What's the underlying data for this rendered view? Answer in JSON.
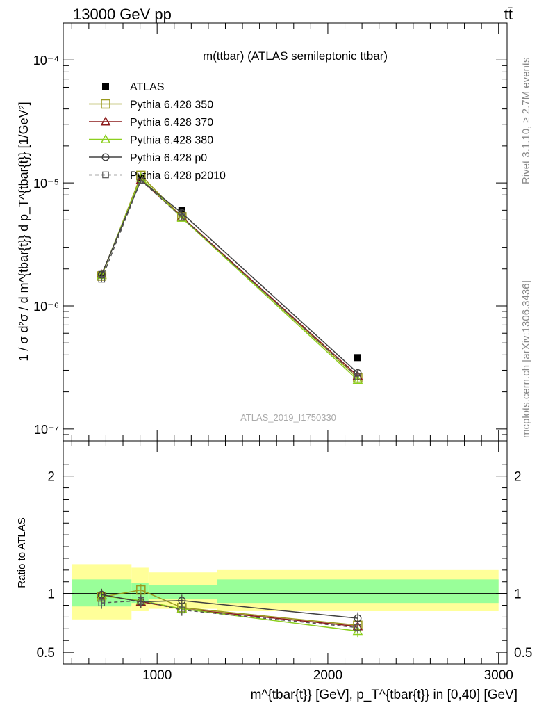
{
  "header": {
    "left": "13000 GeV pp",
    "right": "tt̄"
  },
  "side_labels": {
    "rivet": "Rivet 3.1.10, ≥ 2.7M events",
    "mcplots": "mcplots.cern.ch [arXiv:1306.3436]"
  },
  "chart_data": [
    {
      "type": "line",
      "title": "m(ttbar) (ATLAS semileptonic ttbar)",
      "watermark": "ATLAS_2019_I1750330",
      "ylabel": "1 / σ d²σ / d m^{tbar{t}} d p_T^{tbar{t}} [1/GeV²]",
      "yscale": "log",
      "ylim": [
        8e-08,
        0.0002
      ],
      "xlim": [
        450,
        3050
      ],
      "y_ticks": [
        {
          "value": 1e-07,
          "label": "10⁻⁷"
        },
        {
          "value": 1e-06,
          "label": "10⁻⁶"
        },
        {
          "value": 1e-05,
          "label": "10⁻⁵"
        },
        {
          "value": 0.0001,
          "label": "10⁻⁴"
        }
      ],
      "legend_position": "top-left",
      "x": [
        675,
        905,
        1145,
        2175
      ],
      "series": [
        {
          "name": "ATLAS",
          "color": "#000000",
          "marker": "filled-square",
          "line": "none",
          "values": [
            1.8e-06,
            1.1e-05,
            6e-06,
            3.8e-07
          ]
        },
        {
          "name": "Pythia 6.428 350",
          "color": "#9a9a1e",
          "marker": "open-square",
          "line": "solid",
          "values": [
            1.75e-06,
            1.15e-05,
            5.3e-06,
            2.6e-07
          ]
        },
        {
          "name": "Pythia 6.428 370",
          "color": "#8b1a1a",
          "marker": "open-triangle",
          "line": "solid",
          "values": [
            1.8e-06,
            1.06e-05,
            5.3e-06,
            2.7e-07
          ]
        },
        {
          "name": "Pythia 6.428 380",
          "color": "#8ccf1f",
          "marker": "open-triangle",
          "line": "solid",
          "values": [
            1.78e-06,
            1.1e-05,
            5.2e-06,
            2.5e-07
          ]
        },
        {
          "name": "Pythia 6.428 p0",
          "color": "#404040",
          "marker": "open-circle",
          "line": "solid",
          "values": [
            1.8e-06,
            1.05e-05,
            5.7e-06,
            2.85e-07
          ]
        },
        {
          "name": "Pythia 6.428 p2010",
          "color": "#555555",
          "marker": "open-square-small",
          "line": "dashed",
          "values": [
            1.65e-06,
            1.05e-05,
            5.25e-06,
            2.65e-07
          ]
        }
      ]
    },
    {
      "type": "line",
      "xlabel": "m^{tbar{t}} [GeV], p_T^{tbar{t}} in [0,40] [GeV]",
      "ylabel": "Ratio to ATLAS",
      "ylim": [
        0.4,
        2.3
      ],
      "xlim": [
        450,
        3050
      ],
      "x_ticks": [
        {
          "value": 1000,
          "label": "1000"
        },
        {
          "value": 2000,
          "label": "2000"
        },
        {
          "value": 3000,
          "label": "3000"
        }
      ],
      "y_ticks": [
        {
          "value": 0.5,
          "label": "0.5"
        },
        {
          "value": 1,
          "label": "1"
        },
        {
          "value": 2,
          "label": "2"
        }
      ],
      "uncertainty_bands": [
        {
          "x": [
            500,
            850
          ],
          "stat": [
            0.89,
            1.12
          ],
          "total": [
            0.78,
            1.25
          ]
        },
        {
          "x": [
            850,
            950
          ],
          "stat": [
            0.92,
            1.09
          ],
          "total": [
            0.85,
            1.22
          ]
        },
        {
          "x": [
            950,
            1350
          ],
          "stat": [
            0.95,
            1.07
          ],
          "total": [
            0.87,
            1.18
          ]
        },
        {
          "x": [
            1350,
            3000
          ],
          "stat": [
            0.92,
            1.12
          ],
          "total": [
            0.85,
            1.2
          ]
        }
      ],
      "x": [
        675,
        905,
        1145,
        2175
      ],
      "series": [
        {
          "name": "Pythia 6.428 350",
          "values": [
            0.97,
            1.03,
            0.88,
            0.73
          ]
        },
        {
          "name": "Pythia 6.428 370",
          "values": [
            0.99,
            0.93,
            0.87,
            0.72
          ]
        },
        {
          "name": "Pythia 6.428 380",
          "values": [
            0.98,
            0.94,
            0.87,
            0.68
          ]
        },
        {
          "name": "Pythia 6.428 p0",
          "values": [
            0.99,
            0.93,
            0.94,
            0.79
          ]
        },
        {
          "name": "Pythia 6.428 p2010",
          "values": [
            0.92,
            0.94,
            0.86,
            0.71
          ]
        }
      ]
    }
  ]
}
